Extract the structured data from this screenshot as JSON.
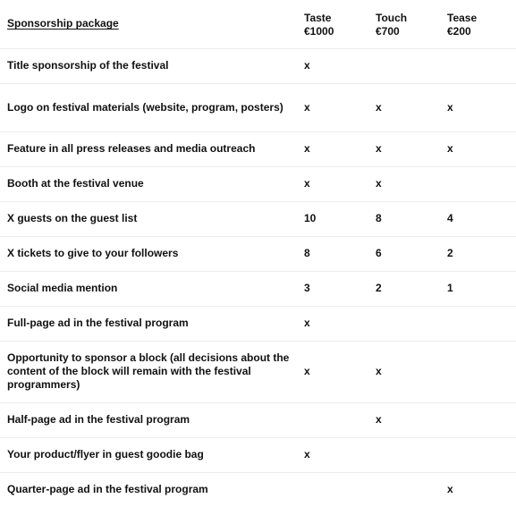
{
  "header": {
    "title": "Sponsorship package",
    "tiers": [
      {
        "name": "Taste",
        "price": "€1000"
      },
      {
        "name": "Touch",
        "price": "€700"
      },
      {
        "name": "Tease",
        "price": "€200"
      }
    ]
  },
  "rows": [
    {
      "feature": "Title sponsorship of the festival",
      "values": [
        "x",
        "",
        ""
      ]
    },
    {
      "feature": "Logo on festival materials (website, program, posters)",
      "values": [
        "x",
        "x",
        "x"
      ]
    },
    {
      "feature": "Feature in all press releases and media outreach",
      "values": [
        "x",
        "x",
        "x"
      ]
    },
    {
      "feature": "Booth at the festival venue",
      "values": [
        "x",
        "x",
        ""
      ]
    },
    {
      "feature": "X guests on the guest list",
      "values": [
        "10",
        "8",
        "4"
      ]
    },
    {
      "feature": "X tickets to give to your followers",
      "values": [
        "8",
        "6",
        "2"
      ]
    },
    {
      "feature": "Social media mention",
      "values": [
        "3",
        "2",
        "1"
      ]
    },
    {
      "feature": "Full-page ad in the festival program",
      "values": [
        "x",
        "",
        ""
      ]
    },
    {
      "feature": "Opportunity to sponsor a block (all decisions about the content of the block will remain with the festival programmers)",
      "values": [
        "x",
        "x",
        ""
      ]
    },
    {
      "feature": "Half-page ad in the festival program",
      "values": [
        "",
        "x",
        ""
      ]
    },
    {
      "feature": "Your product/flyer in guest goodie bag",
      "values": [
        "x",
        "",
        ""
      ]
    },
    {
      "feature": "Quarter-page ad in the festival program",
      "values": [
        "",
        "",
        "x"
      ]
    }
  ]
}
